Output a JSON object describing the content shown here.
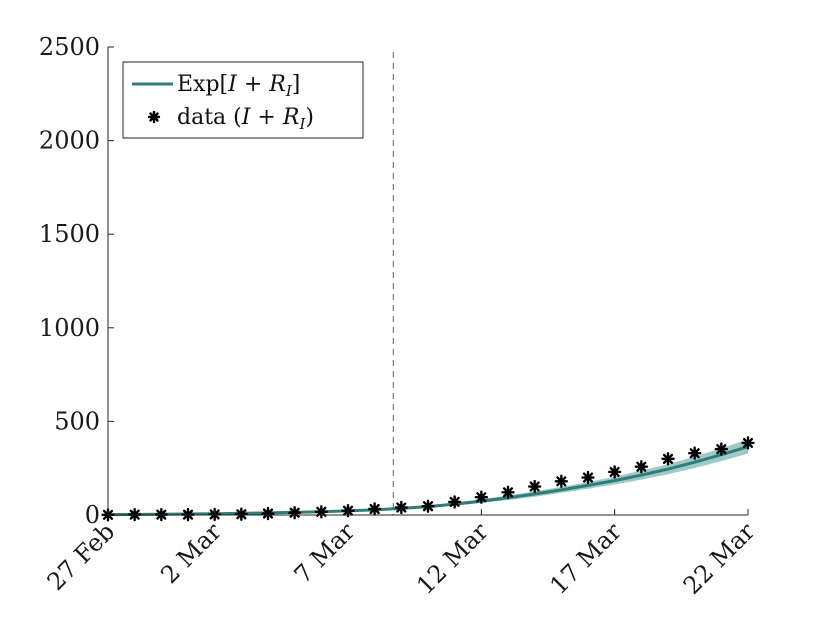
{
  "chart_data": {
    "type": "line",
    "title": "",
    "xlabel": "",
    "ylabel": "",
    "x_start_label": "27 Feb",
    "ylim": [
      0,
      2500
    ],
    "xlim": [
      0,
      24
    ],
    "yticks": [
      0,
      500,
      1000,
      1500,
      2000,
      2500
    ],
    "ytick_labels": [
      "0",
      "500",
      "1000",
      "1500",
      "2000",
      "2500"
    ],
    "xticks": [
      0,
      4,
      9,
      14,
      19,
      24
    ],
    "xtick_labels": [
      "27 Feb",
      "2 Mar",
      "7 Mar",
      "12 Mar",
      "17 Mar",
      "22 Mar"
    ],
    "vline_x": 10.7,
    "legend": {
      "position": "top-left",
      "entries": [
        {
          "label_main": "Exp[",
          "label_var": "I",
          "label_op": " + ",
          "label_var2": "R",
          "label_sub": "I",
          "label_end": "]",
          "kind": "line"
        },
        {
          "label_main": "data (",
          "label_var": "I",
          "label_op": " + ",
          "label_var2": "R",
          "label_sub": "I",
          "label_end": ")",
          "kind": "marker"
        }
      ]
    },
    "series": [
      {
        "name": "Exp[I + R_I]",
        "color": "#2e7d78",
        "band_color": "#7fb8b4",
        "x": [
          0,
          2,
          4,
          6,
          8,
          10,
          11,
          12,
          13,
          14,
          15,
          16,
          17,
          18,
          19,
          20,
          21,
          22,
          23,
          24
        ],
        "mean": [
          2,
          4,
          7,
          11,
          17,
          27,
          35,
          45,
          58,
          74,
          92,
          112,
          134,
          158,
          184,
          213,
          245,
          282,
          322,
          365
        ],
        "lower": [
          1,
          3,
          6,
          9,
          14,
          23,
          30,
          39,
          50,
          64,
          80,
          98,
          118,
          140,
          163,
          189,
          218,
          251,
          288,
          328
        ],
        "upper": [
          3,
          5,
          9,
          13,
          20,
          31,
          40,
          52,
          66,
          84,
          104,
          126,
          150,
          176,
          205,
          237,
          272,
          312,
          356,
          405
        ]
      },
      {
        "name": "data (I + R_I)",
        "color": "#000000",
        "x": [
          0,
          1,
          2,
          3,
          4,
          5,
          6,
          7,
          8,
          9,
          10,
          11,
          12,
          13,
          14,
          15,
          16,
          17,
          18,
          19,
          20,
          21,
          22,
          23,
          24
        ],
        "values": [
          1,
          2,
          2,
          2,
          3,
          4,
          8,
          12,
          17,
          23,
          32,
          40,
          47,
          70,
          95,
          121,
          152,
          180,
          200,
          230,
          258,
          300,
          330,
          352,
          385
        ]
      }
    ]
  }
}
